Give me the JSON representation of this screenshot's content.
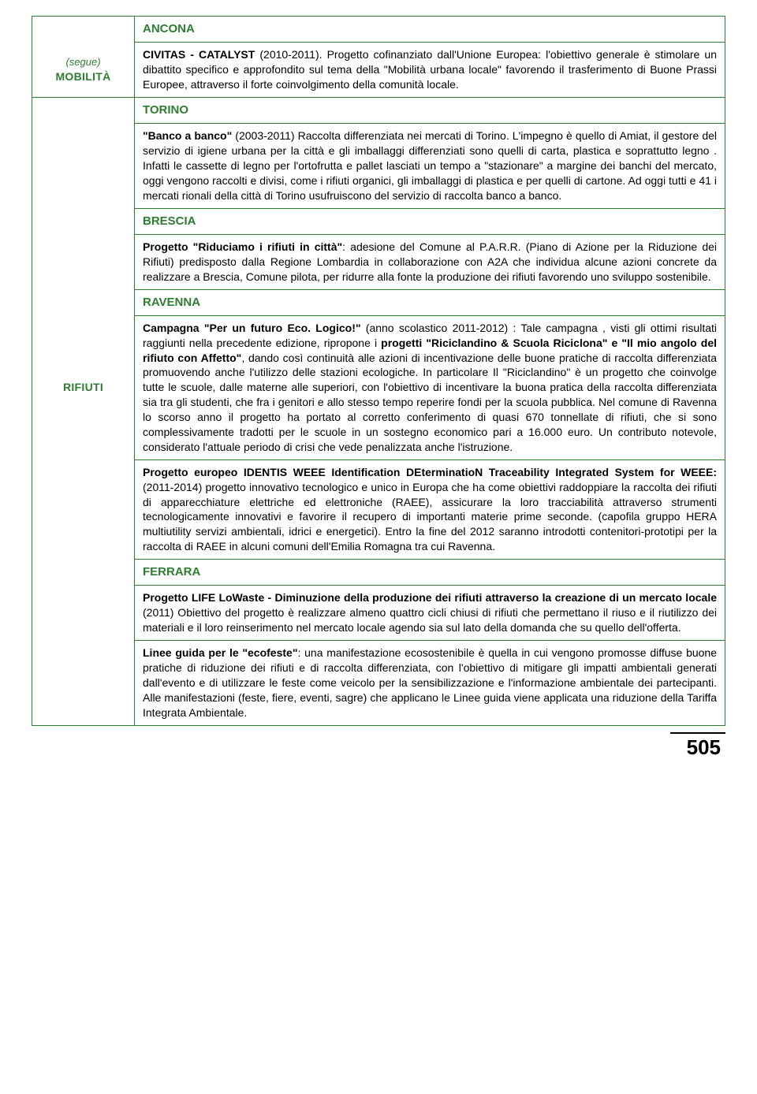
{
  "colors": {
    "green": "#2e7d32",
    "text": "#000000",
    "background": "#ffffff"
  },
  "typography": {
    "body_fontsize": 14,
    "header_fontsize": 15,
    "pagenum_fontsize": 26,
    "font_family": "Arial, Helvetica, sans-serif"
  },
  "left": {
    "segue": "(segue)",
    "mobilita": "MOBILITÀ",
    "rifiuti": "RIFIUTI"
  },
  "ancona": {
    "title": "ANCONA",
    "body_bold": "CIVITAS - CATALYST",
    "body_rest": " (2010-2011). Progetto cofinanziato dall'Unione Europea: l'obiettivo generale è stimolare un dibattito specifico e approfondito sul tema della \"Mobilità urbana locale\" favorendo il trasferimento di Buone Prassi Europee, attraverso il forte coinvolgimento della comunità locale."
  },
  "torino": {
    "title": "TORINO",
    "body_bold": "\"Banco a banco\"",
    "body_rest": " (2003-2011) Raccolta differenziata nei mercati di Torino. L'impegno è quello di Amiat, il gestore del servizio di igiene urbana per la città e gli imballaggi differenziati sono quelli di carta, plastica e soprattutto legno . Infatti le cassette di legno per l'ortofrutta e pallet lasciati un tempo a \"stazionare\" a margine dei banchi del mercato, oggi vengono raccolti e divisi, come i rifiuti organici, gli imballaggi di plastica e per quelli di cartone. Ad oggi tutti e 41 i mercati rionali della città di Torino usufruiscono del servizio di raccolta banco a banco."
  },
  "brescia": {
    "title": "BRESCIA",
    "body_bold": "Progetto \"Riduciamo i rifiuti in città\"",
    "body_rest": ": adesione del Comune al P.A.R.R. (Piano di Azione per la Riduzione dei Rifiuti) predisposto dalla Regione Lombardia in collaborazione con A2A che individua alcune azioni concrete da realizzare a Brescia, Comune pilota, per ridurre alla fonte la produzione dei rifiuti favorendo uno sviluppo sostenibile."
  },
  "ravenna": {
    "title": "RAVENNA",
    "p1_bold1": "Campagna \"Per un futuro Eco. Logico!\"",
    "p1_mid1": " (anno scolastico 2011-2012) : Tale campagna , visti gli ottimi risultati raggiunti nella precedente edizione, ripropone i ",
    "p1_bold2": "progetti \"Riciclandino & Scuola Riciclona\" e \"Il mio angolo del rifiuto con Affetto\"",
    "p1_rest": ", dando così continuità alle azioni di incentivazione delle buone pratiche di raccolta differenziata promuovendo anche l'utilizzo delle stazioni ecologiche. In particolare Il \"Riciclandino\" è un progetto che coinvolge tutte le scuole, dalle materne alle superiori, con l'obiettivo di incentivare la buona pratica della raccolta differenziata sia tra gli studenti, che fra i genitori e allo stesso tempo reperire fondi per la scuola pubblica. Nel comune di Ravenna lo scorso anno il progetto ha portato al corretto conferimento di quasi 670 tonnellate di rifiuti, che si sono complessivamente tradotti per le scuole in un sostegno economico pari a 16.000 euro. Un contributo notevole, considerato l'attuale periodo di crisi che vede penalizzata anche l'istruzione.",
    "p2_bold": "Progetto europeo IDENTIS WEEE Identification DEterminatioN Traceability Integrated System for WEEE:",
    "p2_rest": " (2011-2014) progetto innovativo tecnologico e unico in Europa che ha come obiettivi raddoppiare la raccolta dei rifiuti di apparecchiature elettriche ed elettroniche (RAEE), assicurare la loro tracciabilità attraverso strumenti tecnologicamente innovativi e favorire il recupero di importanti materie prime seconde. (capofila gruppo HERA multiutility servizi ambientali, idrici e energetici). Entro la fine del 2012 saranno introdotti contenitori-prototipi per la raccolta di RAEE in alcuni comuni dell'Emilia Romagna tra cui Ravenna."
  },
  "ferrara": {
    "title": "FERRARA",
    "p1_bold": "Progetto LIFE LoWaste - Diminuzione della produzione dei rifiuti attraverso la creazione di un mercato locale",
    "p1_rest": " (2011) Obiettivo del progetto è realizzare almeno quattro cicli chiusi di rifiuti che permettano il riuso e il riutilizzo dei materiali e il loro reinserimento nel mercato locale agendo sia sul lato della domanda che su quello dell'offerta.",
    "p2_bold": "Linee guida per le \"ecofeste\"",
    "p2_rest": ": una manifestazione ecosostenibile è quella in cui vengono promosse diffuse buone pratiche di riduzione dei rifiuti e di raccolta differenziata, con l'obiettivo di mitigare gli impatti ambientali generati dall'evento e di utilizzare le feste come veicolo per la sensibilizzazione e l'informazione ambientale dei partecipanti. Alle manifestazioni (feste, fiere, eventi, sagre) che applicano le Linee guida viene applicata una riduzione della Tariffa Integrata Ambientale."
  },
  "page_number": "505"
}
